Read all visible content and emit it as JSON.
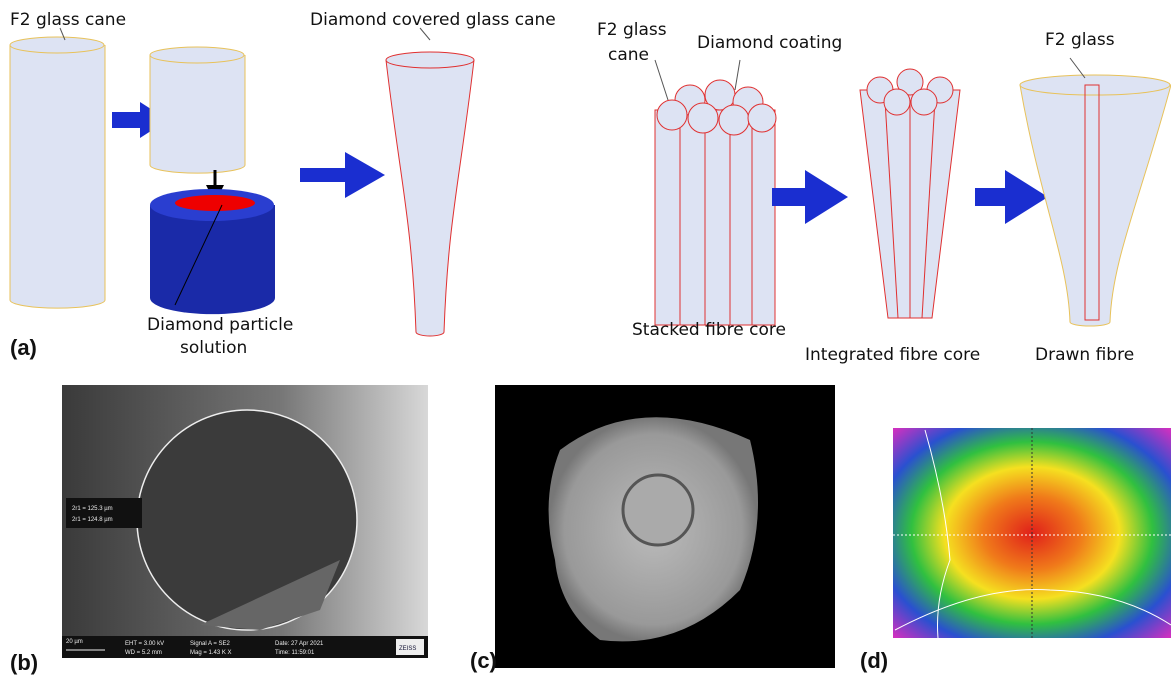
{
  "panel_a": {
    "label": "(a)",
    "left": {
      "cane_label": "F2 glass cane",
      "covered_label": "Diamond covered glass cane",
      "solution_label": [
        "Diamond particle",
        "solution"
      ]
    },
    "right": {
      "cane_label": [
        "F2 glass",
        "cane"
      ],
      "coating_label": "Diamond coating",
      "glass_label": "F2 glass",
      "stacked_label": "Stacked fibre core",
      "integrated_label": "Integrated fibre core",
      "drawn_label": "Drawn fibre"
    }
  },
  "panel_b": {
    "label": "(b)",
    "measurements": [
      "2r1 = 125.3 µm",
      "2r1 = 124.8 µm"
    ],
    "scale": "20 µm",
    "info": [
      "EHT = 3.00 kV",
      "WD = 5.2 mm",
      "Signal A = SE2",
      "Mag = 1.43 K X",
      "Date: 27 Apr 2021",
      "Time: 11:59:01"
    ],
    "brand": "ZEISS"
  },
  "panel_c": {
    "label": "(c)"
  },
  "panel_d": {
    "label": "(d)"
  }
}
